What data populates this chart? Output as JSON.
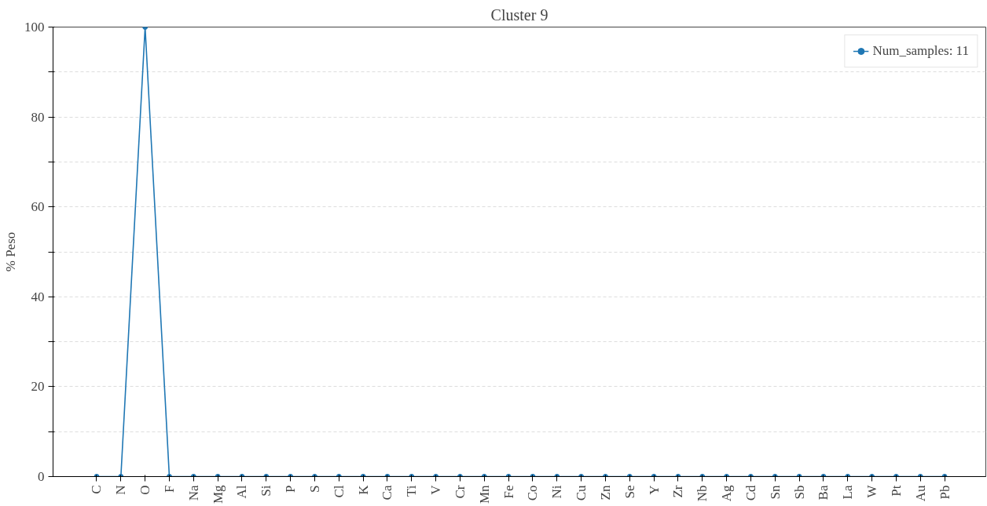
{
  "chart_data": {
    "type": "line",
    "title": "Cluster 9",
    "ylabel": "% Peso",
    "categories": [
      "C",
      "N",
      "O",
      "F",
      "Na",
      "Mg",
      "Al",
      "Si",
      "P",
      "S",
      "Cl",
      "K",
      "Ca",
      "Ti",
      "V",
      "Cr",
      "Mn",
      "Fe",
      "Co",
      "Ni",
      "Cu",
      "Zn",
      "Se",
      "Y",
      "Zr",
      "Nb",
      "Ag",
      "Cd",
      "Sn",
      "Sb",
      "Ba",
      "La",
      "W",
      "Pt",
      "Au",
      "Pb"
    ],
    "series": [
      {
        "name": "Num_samples: 11",
        "color": "#1f77b4",
        "values": [
          0,
          0,
          100,
          0,
          0,
          0,
          0,
          0,
          0,
          0,
          0,
          0,
          0,
          0,
          0,
          0,
          0,
          0,
          0,
          0,
          0,
          0,
          0,
          0,
          0,
          0,
          0,
          0,
          0,
          0,
          0,
          0,
          0,
          0,
          0,
          0
        ]
      }
    ],
    "ylim": [
      0,
      100
    ],
    "yticks": [
      0,
      {
        "value": 10,
        "label": null
      },
      20,
      {
        "value": 30,
        "label": null
      },
      40,
      {
        "value": 50,
        "label": null
      },
      60,
      {
        "value": 70,
        "label": null
      },
      80,
      {
        "value": 90,
        "label": null
      },
      100
    ],
    "grid": "y",
    "legend": "top right",
    "marker": "circle",
    "line_style": "solid"
  }
}
